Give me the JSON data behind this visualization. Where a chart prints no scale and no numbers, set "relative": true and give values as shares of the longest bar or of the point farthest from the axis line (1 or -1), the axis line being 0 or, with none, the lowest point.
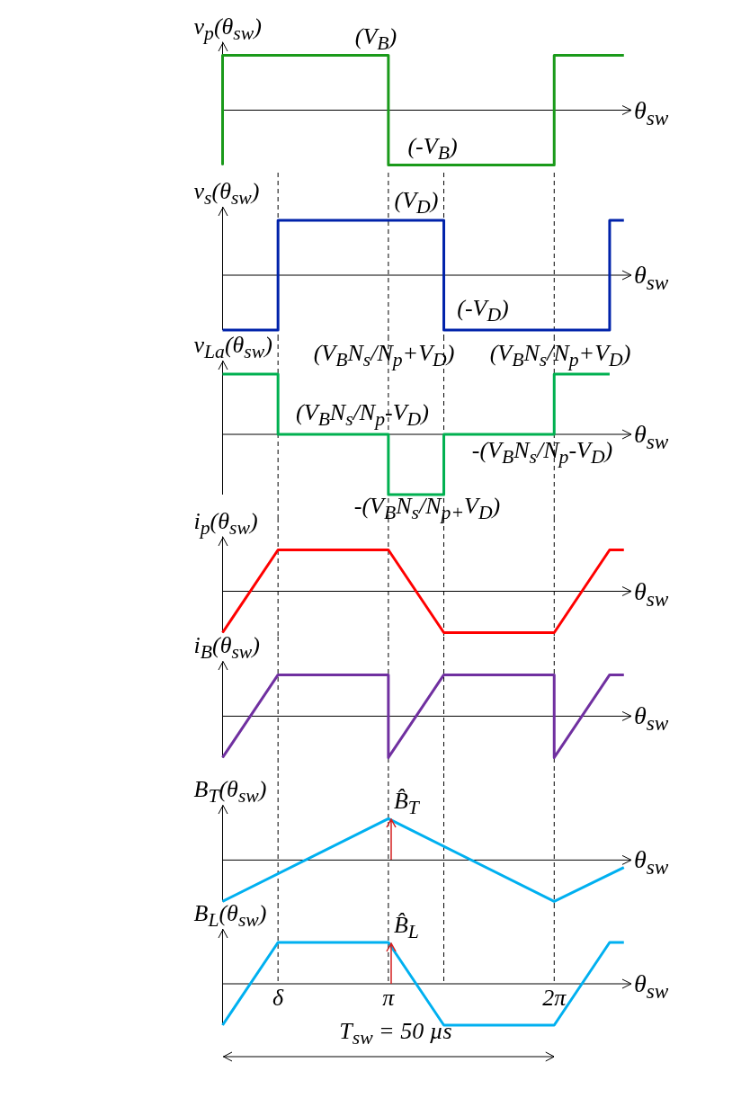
{
  "chart_data": [
    {
      "type": "line",
      "ylabel": "v$_{p}$(θ$_{sw}$)",
      "xlabel": "θ$_{sw}$",
      "relative": true,
      "x": [
        0,
        0,
        3.14,
        3.14,
        6.28,
        6.28,
        7.6
      ],
      "values": [
        -1,
        1,
        1,
        -1,
        -1,
        1,
        1
      ],
      "color": "#1a9a1a",
      "xlim": [
        0,
        7.74
      ],
      "annotations": [
        "(V$_{B}$)",
        "(-V$_{B}$)"
      ]
    },
    {
      "type": "line",
      "ylabel": "v$_{s}$(θ$_{sw}$)",
      "xlabel": "θ$_{sw}$",
      "relative": true,
      "x": [
        0,
        1.05,
        1.05,
        4.19,
        4.19,
        7.33,
        7.33,
        7.6
      ],
      "values": [
        -1,
        -1,
        1,
        1,
        -1,
        -1,
        1,
        1
      ],
      "color": "#0022aa",
      "xlim": [
        0,
        7.74
      ],
      "annotations": [
        "(V$_{D}$)",
        "(-V$_{D}$)"
      ],
      "ref_lines": [
        {
          "axis": "x",
          "value": 1.05,
          "line_style": "dashed"
        },
        {
          "axis": "x",
          "value": 3.14,
          "line_style": "dashed"
        },
        {
          "axis": "x",
          "value": 4.19,
          "line_style": "dashed"
        },
        {
          "axis": "x",
          "value": 6.28,
          "line_style": "dashed"
        }
      ]
    },
    {
      "type": "line",
      "ylabel": "v$_{La}$(θ$_{sw}$)",
      "xlabel": "θ$_{sw}$",
      "relative": true,
      "x": [
        0,
        1.05,
        1.05,
        3.14,
        3.14,
        4.19,
        4.19,
        6.28,
        6.28,
        7.33
      ],
      "values": [
        1,
        1,
        0,
        0,
        -1,
        -1,
        0,
        0,
        1,
        1
      ],
      "color": "#00b050",
      "xlim": [
        0,
        7.74
      ],
      "annotations": [
        "(V$_{B}$N$_{s}$/N$_{p}$+V$_{D}$)",
        "(V$_{B}$N$_{s}$/N$_{p}$+V$_{D}$)",
        "(V$_{B}$N$_{s}$/N$_{p}$-V$_{D}$)",
        "-(V$_{B}$N$_{s}$/N$_{p}$-V$_{D}$)",
        "-(V$_{B}$N$_{s}$/N$_{p+}$V$_{D}$)"
      ],
      "ref_lines": [
        {
          "axis": "x",
          "value": 1.05,
          "line_style": "dashed"
        },
        {
          "axis": "x",
          "value": 3.14,
          "line_style": "dashed"
        },
        {
          "axis": "x",
          "value": 4.19,
          "line_style": "dashed"
        },
        {
          "axis": "x",
          "value": 6.28,
          "line_style": "dashed"
        }
      ]
    },
    {
      "type": "line",
      "ylabel": "i$_{p}$(θ$_{sw}$)",
      "xlabel": "θ$_{sw}$",
      "relative": true,
      "x": [
        0,
        1.05,
        3.14,
        4.19,
        6.28,
        7.33,
        7.6
      ],
      "values": [
        -1,
        1,
        1,
        -1,
        -1,
        1,
        1
      ],
      "color": "#ff0000",
      "xlim": [
        0,
        7.74
      ],
      "ref_lines": [
        {
          "axis": "x",
          "value": 1.05,
          "line_style": "dashed"
        },
        {
          "axis": "x",
          "value": 3.14,
          "line_style": "dashed"
        },
        {
          "axis": "x",
          "value": 4.19,
          "line_style": "dashed"
        },
        {
          "axis": "x",
          "value": 6.28,
          "line_style": "dashed"
        }
      ]
    },
    {
      "type": "line",
      "ylabel": "i$_{B}$(θ$_{sw}$)",
      "xlabel": "θ$_{sw}$",
      "relative": true,
      "x": [
        0,
        1.05,
        3.14,
        3.14,
        4.19,
        6.28,
        6.28,
        7.33,
        7.6
      ],
      "values": [
        -1,
        1,
        1,
        -1,
        1,
        1,
        -1,
        1,
        1
      ],
      "color": "#7030a0",
      "xlim": [
        0,
        7.74
      ],
      "ref_lines": [
        {
          "axis": "x",
          "value": 1.05,
          "line_style": "dashed"
        },
        {
          "axis": "x",
          "value": 3.14,
          "line_style": "dashed"
        },
        {
          "axis": "x",
          "value": 4.19,
          "line_style": "dashed"
        },
        {
          "axis": "x",
          "value": 6.28,
          "line_style": "dashed"
        }
      ]
    },
    {
      "type": "line",
      "ylabel": "B$_{T}$(θ$_{sw}$)",
      "xlabel": "θ$_{sw}$",
      "relative": true,
      "x": [
        0,
        3.14,
        6.28,
        7.6
      ],
      "values": [
        -1,
        1,
        -1,
        -0.18
      ],
      "color": "#00b0f0",
      "xlim": [
        0,
        7.74
      ],
      "annotations": [
        {
          "text": "B̂$_{T}$",
          "x": 3.14,
          "y": 1
        }
      ],
      "ref_lines": [
        {
          "axis": "x",
          "value": 1.05,
          "line_style": "dashed"
        },
        {
          "axis": "x",
          "value": 3.14,
          "line_style": "dashed"
        },
        {
          "axis": "x",
          "value": 4.19,
          "line_style": "dashed"
        },
        {
          "axis": "x",
          "value": 6.28,
          "line_style": "dashed"
        }
      ]
    },
    {
      "type": "line",
      "ylabel": "B$_{L}$(θ$_{sw}$)",
      "xlabel": "θ$_{sw}$",
      "relative": true,
      "x": [
        0,
        1.05,
        3.14,
        4.19,
        6.28,
        7.33,
        7.6
      ],
      "values": [
        -1,
        1,
        1,
        -1,
        -1,
        1,
        1
      ],
      "color": "#00b0f0",
      "xlim": [
        0,
        7.74
      ],
      "xticks": [
        {
          "value": 1.05,
          "label": "δ"
        },
        {
          "value": 3.14,
          "label": "π"
        },
        {
          "value": 6.28,
          "label": "2π"
        }
      ],
      "tick_labels": "x",
      "annotations": [
        {
          "text": "B̂$_{L}$",
          "x": 3.14,
          "y": 1
        },
        "T$_{sw}$ = 50 µs"
      ],
      "ref_lines": [
        {
          "axis": "x",
          "value": 1.05,
          "line_style": "dashed"
        },
        {
          "axis": "x",
          "value": 3.14,
          "line_style": "dashed"
        },
        {
          "axis": "x",
          "value": 4.19,
          "line_style": "dashed"
        },
        {
          "axis": "x",
          "value": 6.28,
          "line_style": "dashed"
        }
      ]
    }
  ]
}
